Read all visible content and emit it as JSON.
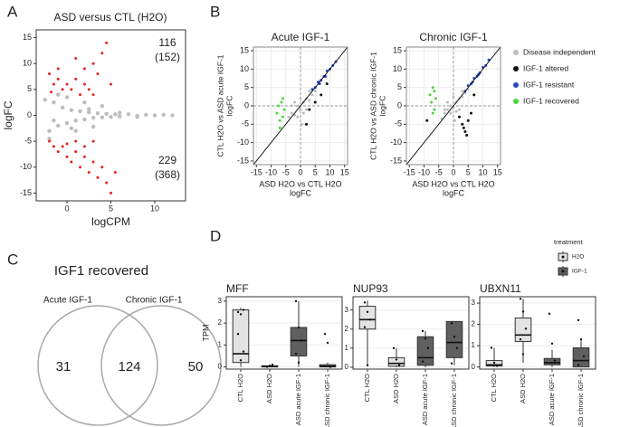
{
  "chart_data": [
    {
      "type": "scatter",
      "panel": "A",
      "title": "ASD versus CTL (H2O)",
      "xlabel": "logCPM",
      "ylabel": "logFC",
      "xlim": [
        -3.5,
        13.5
      ],
      "ylim": [
        -16.5,
        16.5
      ],
      "xticks": [
        0,
        5,
        10
      ],
      "yticks": [
        -15,
        -10,
        -5,
        0,
        5,
        10,
        15
      ],
      "annotations": [
        "116",
        "(152)",
        "229",
        "(368)"
      ],
      "series": [
        {
          "color": "#bdbdbd",
          "x": [
            -2.5,
            -2,
            -1.5,
            -1,
            -0.5,
            0,
            0.5,
            1,
            1.5,
            2,
            2.5,
            3,
            3.5,
            4,
            4.5,
            5,
            5.5,
            6,
            7,
            8,
            9,
            10,
            11,
            12,
            -2,
            -1,
            0,
            1,
            2,
            3,
            4,
            6,
            8,
            -1.5,
            0.5,
            2.5
          ],
          "y": [
            3,
            -3,
            2.5,
            -2,
            1.5,
            -1.5,
            1,
            -1,
            0.8,
            -0.8,
            0.6,
            -0.5,
            0.4,
            -0.4,
            0.3,
            -0.3,
            0.2,
            -0.2,
            0.2,
            -0.1,
            0.1,
            0,
            0.1,
            0,
            -4.5,
            4,
            3.5,
            -3,
            2.5,
            -2.2,
            1.8,
            0.5,
            -0.3,
            -1,
            -2.5,
            1.2
          ]
        },
        {
          "color": "#e3261c",
          "x": [
            -2,
            -1.5,
            -1,
            -1,
            -0.5,
            0,
            0.5,
            1,
            1.5,
            2,
            2.5,
            3,
            3.5,
            4,
            4.5,
            5,
            3,
            2,
            1,
            -1.8,
            -2,
            -1.5,
            -1,
            -0.5,
            0,
            0.5,
            1,
            1.5,
            2,
            2.5,
            3,
            3.5,
            4,
            4.5,
            5,
            5.5,
            2,
            3,
            1,
            0
          ],
          "y": [
            8,
            6,
            7,
            9,
            5,
            6,
            5,
            7,
            4,
            6,
            5,
            4,
            8,
            12,
            14,
            6,
            10,
            9,
            11,
            4.5,
            -5,
            -6,
            -7,
            -6,
            -8,
            -9,
            -7,
            -10,
            -8,
            -11,
            -9,
            -12,
            -10,
            -13,
            -15,
            -11,
            -6,
            -5,
            -5,
            -5.5
          ]
        }
      ]
    },
    {
      "type": "scatter-pair",
      "panel": "B",
      "grid": true,
      "xlabel": [
        "ASD H2O vs CTL H2O",
        "logFC"
      ],
      "xlim": [
        -16,
        16
      ],
      "ylim": [
        -16,
        16
      ],
      "xticks": [
        -15,
        -10,
        -5,
        0,
        5,
        10,
        15
      ],
      "yticks": [
        -15,
        -10,
        -5,
        0,
        5,
        10,
        15
      ],
      "legend": [
        {
          "name": "Disease independent",
          "color": "#bdbdbd"
        },
        {
          "name": "IGF-1 altered",
          "color": "#111111"
        },
        {
          "name": "IGF-1 resistant",
          "color": "#2846c8"
        },
        {
          "name": "IGF-1 recovered",
          "color": "#4cd43c"
        }
      ],
      "panels": [
        {
          "title": "Acute IGF-1",
          "ylabel": [
            "CTL H2O vs ASD acute IGF-1",
            "logFC"
          ],
          "series": [
            {
              "color": "#bdbdbd",
              "x": [
                -4,
                -3,
                -2,
                -1,
                0,
                1,
                2,
                3,
                4,
                5,
                -2,
                0,
                2,
                -1,
                1,
                3,
                -3,
                0.5
              ],
              "y": [
                -3,
                -2,
                -2.5,
                0,
                -1,
                1,
                2,
                1.5,
                3,
                4,
                1,
                2,
                -1,
                -3,
                -2,
                4,
                0,
                -5
              ]
            },
            {
              "color": "#111111",
              "x": [
                3,
                5,
                7,
                2,
                9
              ],
              "y": [
                -1,
                1,
                3,
                -5,
                6
              ]
            },
            {
              "color": "#2846c8",
              "x": [
                4,
                5,
                6,
                7,
                8,
                9,
                10,
                11,
                12,
                6.5,
                8.5
              ],
              "y": [
                4.5,
                5,
                6.5,
                7,
                8,
                9.5,
                10,
                11,
                12,
                6,
                8
              ]
            },
            {
              "color": "#4cd43c",
              "x": [
                -8,
                -7.5,
                -7,
                -6.5,
                -6,
                -5.5,
                -7,
                -6
              ],
              "y": [
                -2,
                0,
                -4,
                1,
                -3,
                -1,
                -6,
                2
              ]
            }
          ]
        },
        {
          "title": "Chronic IGF-1",
          "ylabel": [
            "CTL H2O vs ASD chronic IGF-1",
            "logFC"
          ],
          "series": [
            {
              "color": "#bdbdbd",
              "x": [
                -4,
                -3,
                -2,
                -1,
                0,
                1,
                2,
                3,
                4,
                5,
                -2,
                0,
                2,
                -1,
                1,
                3,
                -3,
                0.5
              ],
              "y": [
                -3.5,
                -2,
                -1,
                0,
                -0.5,
                1,
                2,
                2.5,
                3.5,
                4.5,
                1,
                2.5,
                -1,
                -2,
                -1.5,
                4,
                -1,
                -4
              ]
            },
            {
              "color": "#111111",
              "x": [
                2,
                3,
                4,
                5,
                6,
                4.5,
                3.5,
                -9,
                7
              ],
              "y": [
                -3,
                -5,
                -7,
                -4,
                -2,
                -8,
                -6,
                -4,
                3
              ]
            },
            {
              "color": "#2846c8",
              "x": [
                4,
                5,
                6,
                7,
                8,
                9,
                10,
                11,
                12,
                6.5,
                8.5
              ],
              "y": [
                4,
                5.5,
                6,
                7.5,
                8,
                9,
                10.5,
                11,
                12.5,
                6.5,
                8.5
              ]
            },
            {
              "color": "#4cd43c",
              "x": [
                -8,
                -7.5,
                -7,
                -6.5,
                -6,
                -7,
                -6.5
              ],
              "y": [
                3,
                1,
                5,
                -1,
                2,
                -2,
                4
              ]
            }
          ]
        }
      ]
    },
    {
      "type": "venn",
      "panel": "C",
      "title": "IGF1 recovered",
      "sets": [
        "Acute IGF-1",
        "Chronic IGF-1"
      ],
      "values": [
        31,
        124,
        50
      ]
    },
    {
      "type": "box",
      "panel": "D",
      "ylabel": "TPM",
      "yticks": [
        0,
        1,
        2,
        3
      ],
      "categories": [
        "CTL H2O",
        "ASD H2O",
        "ASD acute IGF-1",
        "ASD chronic IGF-1"
      ],
      "legend_title": "treatment",
      "legend": [
        {
          "name": "H2O",
          "color": "#e3e3e3"
        },
        {
          "name": "IGF-1",
          "color": "#5f5f5f"
        }
      ],
      "panels": [
        {
          "title": "MFF",
          "ylim": [
            -0.1,
            3.2
          ],
          "boxes": [
            {
              "treatment": "H2O",
              "q1": 0.2,
              "median": 0.6,
              "q3": 2.6,
              "whislo": 0,
              "whishi": 2.7,
              "points": [
                2.5,
                2.4,
                2.6,
                1.5,
                0.3,
                0.7
              ]
            },
            {
              "treatment": "H2O",
              "q1": 0,
              "median": 0.02,
              "q3": 0.05,
              "whislo": 0,
              "whishi": 0.1,
              "points": [
                0,
                0.05,
                0.1
              ]
            },
            {
              "treatment": "IGF-1",
              "q1": 0.5,
              "median": 1.2,
              "q3": 1.8,
              "whislo": 0,
              "whishi": 3.0,
              "points": [
                3.0,
                1.8,
                1.2,
                0.6,
                0.2
              ]
            },
            {
              "treatment": "IGF-1",
              "q1": 0,
              "median": 0.02,
              "q3": 0.1,
              "whislo": 0,
              "whishi": 0.2,
              "points": [
                1.5,
                1.1,
                0
              ]
            }
          ]
        },
        {
          "title": "NUP93",
          "ylim": [
            -0.1,
            3.7
          ],
          "boxes": [
            {
              "treatment": "H2O",
              "q1": 2.0,
              "median": 2.5,
              "q3": 3.2,
              "whislo": 0.1,
              "whishi": 3.5,
              "points": [
                3.4,
                2.9,
                2.5,
                2.1,
                0.1
              ]
            },
            {
              "treatment": "H2O",
              "q1": 0.05,
              "median": 0.2,
              "q3": 0.5,
              "whislo": 0,
              "whishi": 1.0,
              "points": [
                1.0,
                0.4,
                0.1
              ]
            },
            {
              "treatment": "IGF-1",
              "q1": 0.1,
              "median": 0.5,
              "q3": 1.6,
              "whislo": 0,
              "whishi": 1.9,
              "points": [
                1.9,
                1.5,
                1.0,
                0.3
              ]
            },
            {
              "treatment": "IGF-1",
              "q1": 0.5,
              "median": 1.3,
              "q3": 2.4,
              "whislo": 0.1,
              "whishi": 2.4,
              "points": [
                2.3,
                1.6,
                1.0,
                0.2
              ]
            }
          ]
        },
        {
          "title": "UBXN11",
          "ylim": [
            -0.1,
            3.3
          ],
          "boxes": [
            {
              "treatment": "H2O",
              "q1": 0.05,
              "median": 0.1,
              "q3": 0.3,
              "whislo": 0,
              "whishi": 0.9,
              "points": [
                0.9,
                0.2,
                0.05
              ]
            },
            {
              "treatment": "H2O",
              "q1": 1.2,
              "median": 1.5,
              "q3": 2.3,
              "whislo": 0.2,
              "whishi": 3.2,
              "points": [
                3.2,
                2.6,
                1.8,
                1.3,
                0.6
              ]
            },
            {
              "treatment": "IGF-1",
              "q1": 0.1,
              "median": 0.2,
              "q3": 0.4,
              "whislo": 0,
              "whishi": 0.8,
              "points": [
                2.5,
                1.1,
                0.3
              ]
            },
            {
              "treatment": "IGF-1",
              "q1": 0,
              "median": 0.3,
              "q3": 0.9,
              "whislo": 0,
              "whishi": 1.3,
              "points": [
                2.2,
                1.3,
                0.5,
                0.1
              ]
            }
          ]
        }
      ]
    }
  ]
}
